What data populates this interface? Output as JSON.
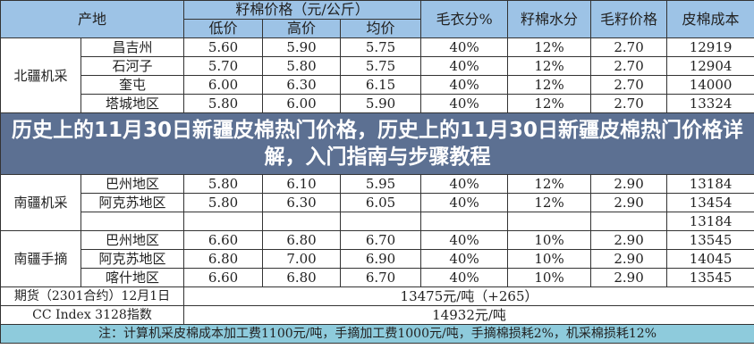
{
  "headers": {
    "origin": "产地",
    "seed_price": "籽棉价格（元/公斤）",
    "low": "低价",
    "high": "高价",
    "avg": "均价",
    "lint_pct": "毛衣分%",
    "moisture": "籽棉水分",
    "seed_price2": "毛籽价格",
    "lint_cost": "皮棉成本"
  },
  "groups": [
    {
      "label": "北疆机采",
      "rows": [
        {
          "region": "昌吉州",
          "low": "5.60",
          "high": "5.90",
          "avg": "5.75",
          "lint": "40%",
          "moisture": "12%",
          "seed": "2.70",
          "cost": "12919"
        },
        {
          "region": "石河子",
          "low": "5.70",
          "high": "5.80",
          "avg": "5.75",
          "lint": "40%",
          "moisture": "12%",
          "seed": "2.70",
          "cost": "12904"
        },
        {
          "region": "奎屯",
          "low": "6.00",
          "high": "6.30",
          "avg": "6.15",
          "lint": "40%",
          "moisture": "12%",
          "seed": "2.70",
          "cost": "14000"
        },
        {
          "region": "塔城地区",
          "low": "5.80",
          "high": "6.00",
          "avg": "5.90",
          "lint": "40%",
          "moisture": "12%",
          "seed": "2.70",
          "cost": "13324"
        }
      ]
    },
    {
      "label": "南疆机采",
      "rows": [
        {
          "region": "巴州地区",
          "low": "5.80",
          "high": "6.10",
          "avg": "5.95",
          "lint": "40%",
          "moisture": "12%",
          "seed": "2.90",
          "cost": "13184"
        },
        {
          "region": "阿克苏地区",
          "low": "5.80",
          "high": "6.30",
          "avg": "6.05",
          "lint": "40%",
          "moisture": "12%",
          "seed": "2.90",
          "cost": "13454"
        },
        {
          "region": "",
          "low": "",
          "high": "",
          "avg": "",
          "lint": "",
          "moisture": "",
          "seed": "",
          "cost": "13184"
        }
      ]
    },
    {
      "label": "南疆手摘",
      "rows": [
        {
          "region": "巴州地区",
          "low": "6.60",
          "high": "6.80",
          "avg": "6.70",
          "lint": "40%",
          "moisture": "10%",
          "seed": "2.90",
          "cost": "13545"
        },
        {
          "region": "阿克苏地区",
          "low": "6.80",
          "high": "7.00",
          "avg": "6.90",
          "lint": "40%",
          "moisture": "10%",
          "seed": "2.90",
          "cost": "14045"
        },
        {
          "region": "喀什地区",
          "low": "6.60",
          "high": "6.80",
          "avg": "6.70",
          "lint": "40%",
          "moisture": "10%",
          "seed": "2.90",
          "cost": "13545"
        }
      ]
    }
  ],
  "futures": {
    "label": "期货（2301合约）12月1日",
    "value": "13475元/吨（+265）"
  },
  "index": {
    "label": "CC Index 3128指数",
    "value": "14932元/吨"
  },
  "note": "注：计算机采皮棉成本加工费1100元/吨，手摘加工费1000元/吨，手摘棉损耗2%，机采棉损耗12%",
  "overlay_title": "历史上的11月30日新疆皮棉热门价格，历史上的11月30日新疆皮棉热门价格详解，入门指南与步骤教程",
  "colors": {
    "header": "#9dc3e6",
    "note": "#8ecbdc",
    "overlay": "#485c7d"
  }
}
